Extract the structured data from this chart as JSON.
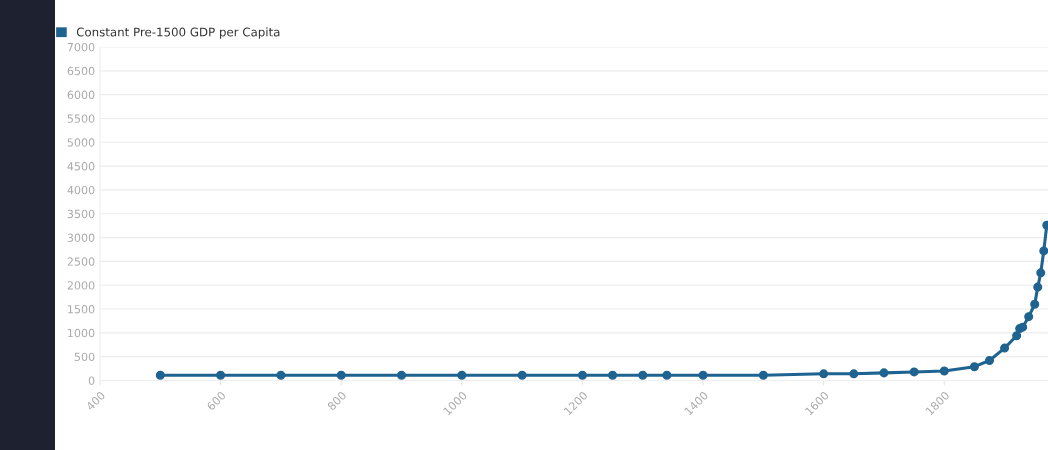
{
  "chart_data": {
    "type": "line",
    "x": [
      500,
      600,
      700,
      800,
      900,
      1000,
      1100,
      1200,
      1250,
      1300,
      1340,
      1400,
      1500,
      1600,
      1650,
      1700,
      1750,
      1800,
      1850,
      1875,
      1900,
      1920,
      1925,
      1930,
      1940,
      1950,
      1955,
      1960,
      1965,
      1970
    ],
    "series": [
      {
        "name": "Constant Pre-1500 GDP per Capita",
        "color": "#1f6391",
        "values": [
          110,
          110,
          110,
          110,
          110,
          110,
          110,
          110,
          110,
          110,
          110,
          110,
          110,
          140,
          140,
          160,
          180,
          200,
          290,
          420,
          680,
          940,
          1090,
          1120,
          1340,
          1600,
          1960,
          2260,
          2720,
          3260
        ]
      }
    ],
    "xlim": [
      400,
      1972
    ],
    "xticks": [
      400,
      600,
      800,
      1000,
      1200,
      1400,
      1600,
      1800
    ],
    "ylim": [
      0,
      7000
    ],
    "yticks": [
      0,
      500,
      1000,
      1500,
      2000,
      2500,
      3000,
      3500,
      4000,
      4500,
      5000,
      5500,
      6000,
      6500,
      7000
    ],
    "grid": "y",
    "legend": "top left",
    "marker": "circle",
    "line_style": "solid"
  }
}
